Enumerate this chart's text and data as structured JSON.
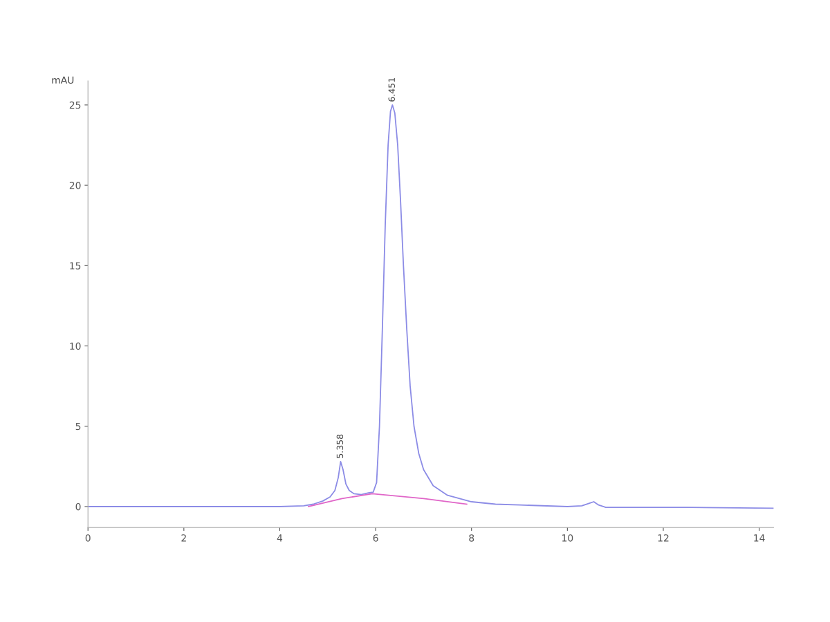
{
  "chart_data": {
    "type": "line",
    "ylabel": "mAU",
    "xlim": [
      0,
      14.3
    ],
    "xticks": [
      0,
      2,
      4,
      6,
      8,
      10,
      12,
      14
    ],
    "ylim": [
      -1.3,
      26.5
    ],
    "yticks": [
      0,
      5,
      10,
      15,
      20,
      25
    ],
    "series": [
      {
        "color": "#8c8ce6",
        "x": [
          0,
          2,
          4,
          4.5,
          4.7,
          4.9,
          5.05,
          5.15,
          5.22,
          5.27,
          5.32,
          5.38,
          5.45,
          5.55,
          5.7,
          5.85,
          5.95,
          6.02,
          6.08,
          6.14,
          6.2,
          6.26,
          6.31,
          6.35,
          6.4,
          6.46,
          6.52,
          6.58,
          6.65,
          6.72,
          6.8,
          6.9,
          7.0,
          7.2,
          7.5,
          8.0,
          8.5,
          9.0,
          10.0,
          10.3,
          10.45,
          10.55,
          10.65,
          10.8,
          11.5,
          12.5,
          14.3
        ],
        "values": [
          0,
          0,
          0,
          0.05,
          0.15,
          0.35,
          0.6,
          1.0,
          1.8,
          2.8,
          2.3,
          1.4,
          1.0,
          0.8,
          0.75,
          0.85,
          0.9,
          1.5,
          5.0,
          11.0,
          17.5,
          22.5,
          24.6,
          25.0,
          24.5,
          22.5,
          19.0,
          15.0,
          11.0,
          7.5,
          5.0,
          3.3,
          2.3,
          1.3,
          0.7,
          0.3,
          0.15,
          0.1,
          0.0,
          0.05,
          0.2,
          0.3,
          0.1,
          -0.05,
          -0.05,
          -0.05,
          -0.1
        ]
      },
      {
        "color": "#e066c8",
        "x": [
          4.6,
          5.3,
          5.93,
          7.0,
          7.9
        ],
        "values": [
          0,
          0.5,
          0.8,
          0.5,
          0.15
        ]
      }
    ],
    "annotations": [
      {
        "text": "5.358",
        "x": 5.27,
        "y": 2.8
      },
      {
        "text": "6.451",
        "x": 6.35,
        "y": 25.0
      }
    ],
    "grid": false,
    "legend": false
  }
}
